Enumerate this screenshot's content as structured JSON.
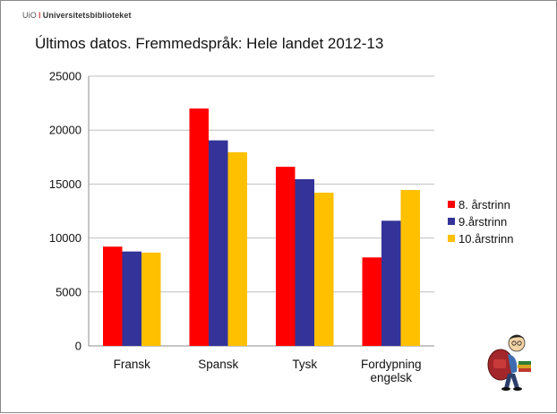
{
  "header": {
    "org_prefix": "UiO",
    "org_name": "Universitetsbiblioteket"
  },
  "chart_data": {
    "type": "bar",
    "title": "Últimos datos. Fremmedspråk: Hele landet 2012-13",
    "categories": [
      [
        "Fransk"
      ],
      [
        "Spansk"
      ],
      [
        "Tysk"
      ],
      [
        "Fordypning",
        "engelsk"
      ]
    ],
    "series": [
      {
        "name": "8. årstrinn",
        "color": "#ff0000",
        "values": [
          9200,
          22000,
          16600,
          8200
        ]
      },
      {
        "name": "9.årstrinn",
        "color": "#333399",
        "values": [
          8750,
          19050,
          15450,
          11600
        ]
      },
      {
        "name": "10.årstrinn",
        "color": "#ffc000",
        "values": [
          8650,
          17950,
          14200,
          14450
        ]
      }
    ],
    "ylim": [
      0,
      25000
    ],
    "yticks": [
      "0",
      "5000",
      "10000",
      "15000",
      "20000",
      "25000"
    ],
    "grid": true,
    "legend": "right"
  },
  "decor": {
    "mascot": "student-with-backpack-illustration"
  }
}
